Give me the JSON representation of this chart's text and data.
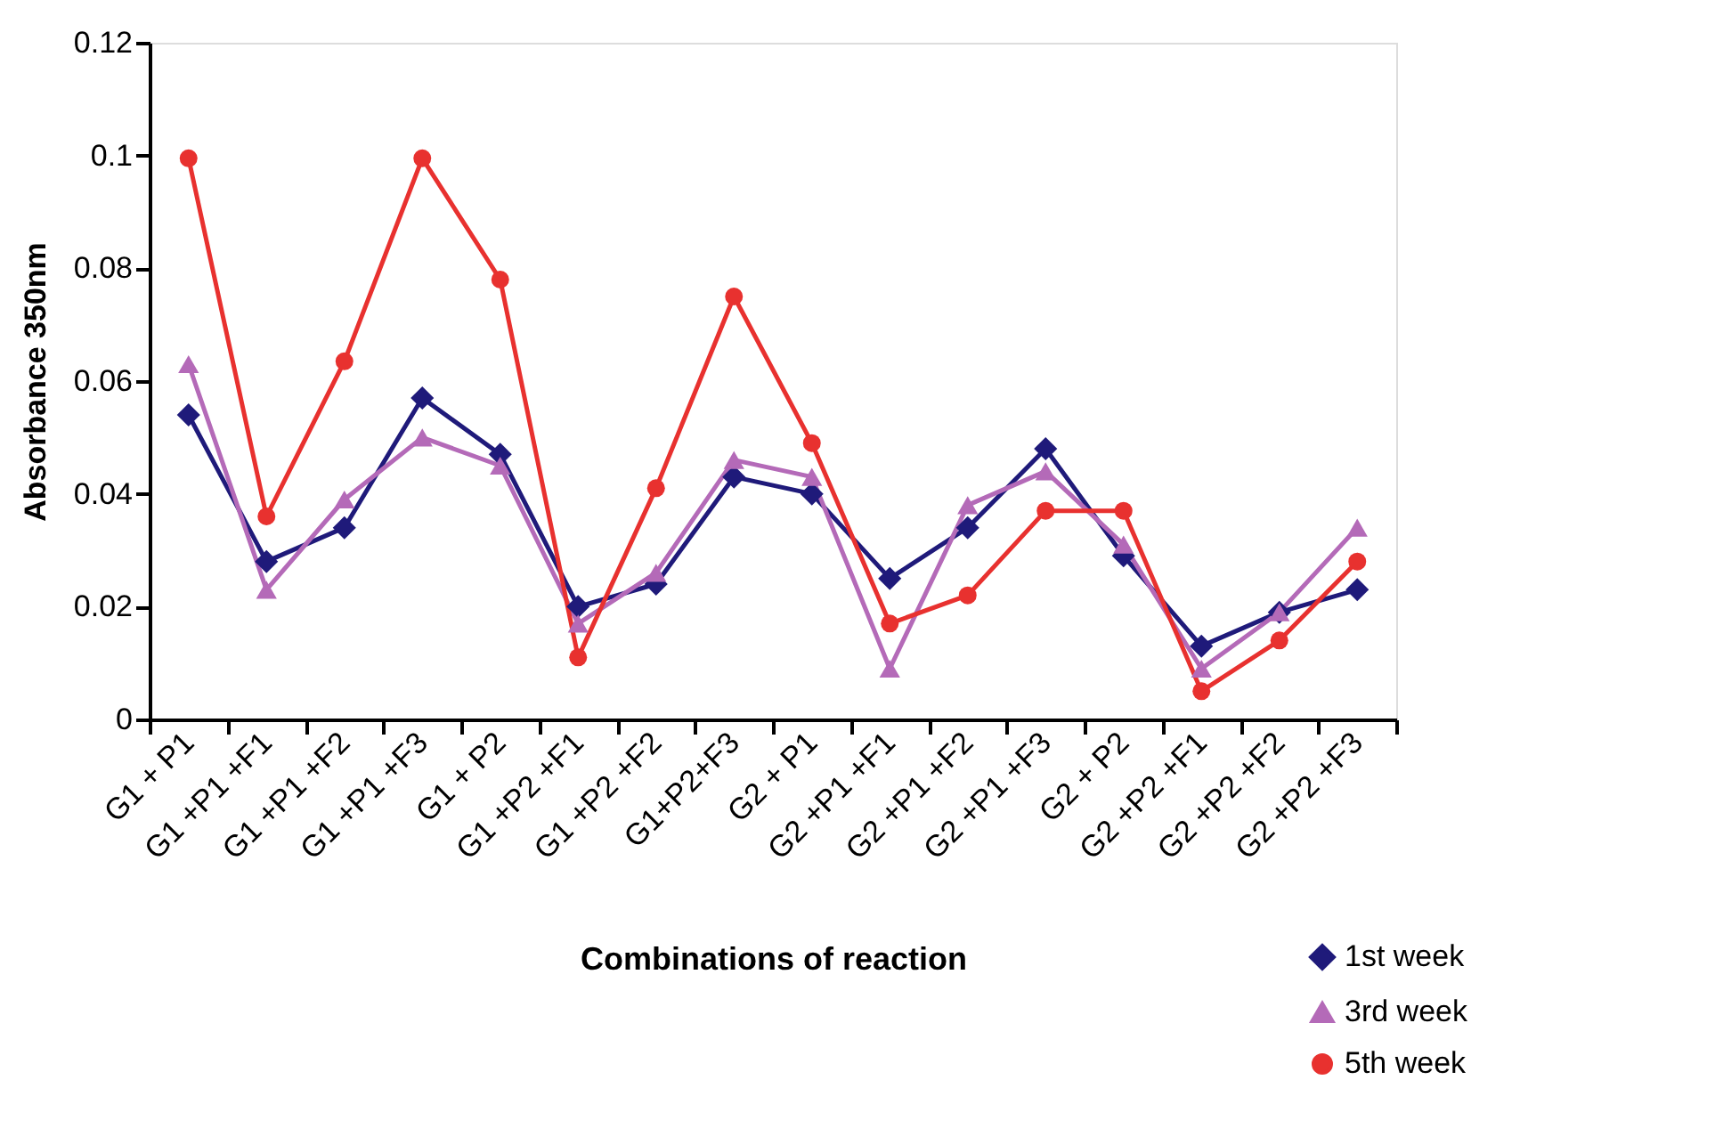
{
  "chart_data": {
    "type": "line",
    "xlabel": "Combinations of reaction",
    "ylabel": "Absorbance 350nm",
    "categories": [
      "G1 + P1",
      "G1 +P1 +F1",
      "G1 +P1 +F2",
      "G1 +P1 +F3",
      "G1 + P2",
      "G1 +P2 +F1",
      "G1 +P2 +F2",
      "G1+P2+F3",
      "G2 + P1",
      "G2 +P1 +F1",
      "G2 +P1 +F2",
      "G2 +P1 +F3",
      "G2 + P2",
      "G2 +P2 +F1",
      "G2 +P2 +F2",
      "G2 +P2 +F3"
    ],
    "series": [
      {
        "name": "1st week",
        "color": "#1f1a7a",
        "marker": "diamond",
        "values": [
          0.054,
          0.028,
          0.034,
          0.057,
          0.047,
          0.02,
          0.024,
          0.043,
          0.04,
          0.025,
          0.034,
          0.048,
          0.029,
          0.013,
          0.019,
          0.023
        ]
      },
      {
        "name": "3rd week",
        "color": "#b46ab8",
        "marker": "triangle",
        "values": [
          0.063,
          0.023,
          0.039,
          0.05,
          0.045,
          0.017,
          0.026,
          0.046,
          0.043,
          0.009,
          0.038,
          0.044,
          0.031,
          0.009,
          0.019,
          0.034
        ]
      },
      {
        "name": "5th week",
        "color": "#e8312f",
        "marker": "circle",
        "values": [
          0.0995,
          0.036,
          0.0635,
          0.0995,
          0.078,
          0.011,
          0.041,
          0.075,
          0.049,
          0.017,
          0.022,
          0.037,
          0.037,
          0.005,
          0.014,
          0.028
        ]
      }
    ],
    "ylim": [
      0,
      0.12
    ],
    "yticks": [
      0,
      0.02,
      0.04,
      0.06,
      0.08,
      0.1,
      0.12
    ],
    "grid": false,
    "legend": "bottom right",
    "line_style": "solid"
  }
}
